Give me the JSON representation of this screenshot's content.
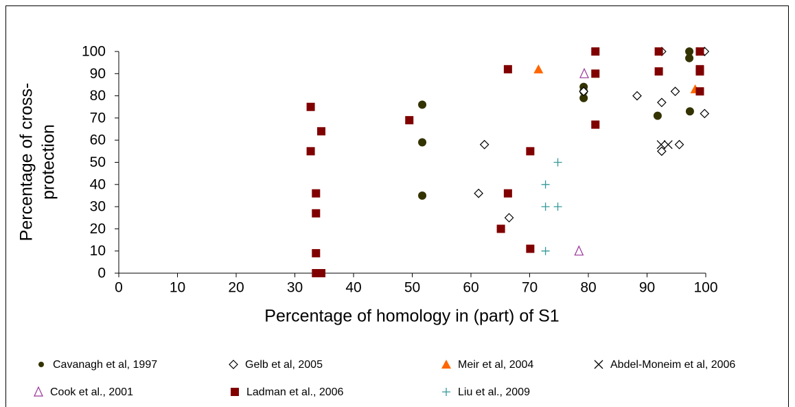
{
  "chart_data": {
    "type": "scatter",
    "xlabel": "Percentage of homology in (part) of S1",
    "ylabel": [
      "Percentage of cross-",
      "protection"
    ],
    "xlim": [
      0,
      100
    ],
    "ylim": [
      0,
      100
    ],
    "xticks": [
      0,
      10,
      20,
      30,
      40,
      50,
      60,
      70,
      80,
      90,
      100
    ],
    "yticks": [
      0,
      10,
      20,
      30,
      40,
      50,
      60,
      70,
      80,
      90,
      100
    ],
    "grid": false,
    "legend": "bottom",
    "series": [
      {
        "name": "Cavanagh et al, 1997",
        "color": "#333300",
        "marker": "circle",
        "x": [
          51.7,
          51.7,
          51.7,
          79.2,
          79.2,
          79.2,
          97.2,
          97.2,
          91.8,
          97.3,
          99
        ],
        "y": [
          76,
          59,
          35,
          84,
          82,
          79,
          100,
          97,
          71,
          73,
          100
        ]
      },
      {
        "name": "Gelb et al, 2005",
        "color": "#000000",
        "marker": "diamond",
        "x": [
          62.3,
          61.3,
          66.5,
          79.2,
          88.3,
          92.5,
          92.5,
          94.8,
          92.5,
          95.5,
          99.8,
          99.8
        ],
        "y": [
          58,
          36,
          25,
          82,
          80,
          100,
          77,
          82,
          55,
          58,
          72,
          100
        ]
      },
      {
        "name": "Meir et al, 2004",
        "color": "#ff6600",
        "marker": "triangle",
        "x": [
          71.5,
          98.2
        ],
        "y": [
          92,
          83
        ]
      },
      {
        "name": "Abdel-Moneim et al, 2006",
        "color": "#000000",
        "marker": "x",
        "x": [
          92.4,
          93.6,
          99.2
        ],
        "y": [
          58,
          58,
          100
        ]
      },
      {
        "name": "Cook et al., 2001",
        "color": "#993399",
        "marker": "triangle-open",
        "x": [
          79.3,
          78.4
        ],
        "y": [
          90,
          10
        ]
      },
      {
        "name": "Ladman et al., 2006",
        "color": "#800000",
        "marker": "square",
        "x": [
          32.7,
          32.7,
          34.5,
          33.6,
          33.6,
          33.6,
          33.6,
          34.5,
          49.5,
          66.3,
          66.3,
          65.1,
          70.1,
          70.1,
          81.2,
          81.2,
          81.2,
          92,
          92,
          99,
          99,
          99,
          99
        ],
        "y": [
          75,
          55,
          64,
          36,
          27,
          9,
          0,
          0,
          69,
          92,
          36,
          20,
          55,
          11,
          100,
          90,
          67,
          100,
          91,
          100,
          92,
          91,
          82
        ]
      },
      {
        "name": "Liu et al., 2009",
        "color": "#339999",
        "marker": "plus",
        "x": [
          74.8,
          72.7,
          72.7,
          74.8,
          72.7
        ],
        "y": [
          50,
          40,
          30,
          30,
          10
        ]
      }
    ]
  }
}
